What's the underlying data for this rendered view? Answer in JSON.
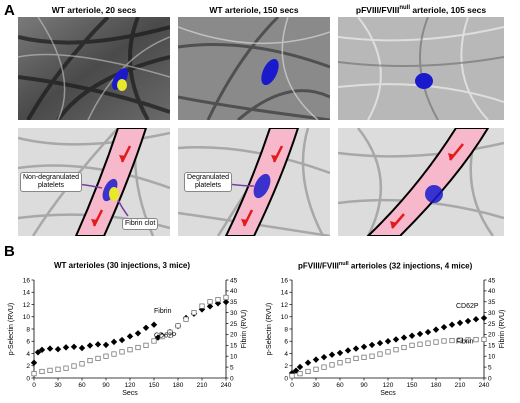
{
  "panel_a": {
    "letter": "A",
    "titles": [
      "WT arteriole, 20 secs",
      "WT arteriole, 150 secs",
      "pFVIII/FVIII",
      "null",
      " arteriole, 105 secs"
    ],
    "labels": {
      "non_degranulated": [
        "Non-degranulated",
        "platelets"
      ],
      "fibrin_clot": "Fibrin clot",
      "degranulated": [
        "Degranulated",
        "platelets"
      ]
    },
    "colors": {
      "platelet": "#1a1acc",
      "fibrin": "#e8e82a",
      "vessel": "#f7b8cc",
      "arrow": "#e41a1c",
      "callout": "#7b3fa0"
    }
  },
  "panel_b": {
    "letter": "B",
    "left_title": "WT arterioles (30 injections, 3 mice)",
    "right_title_a": "pFVIII/FVIII",
    "right_title_sup": "null",
    "right_title_b": " arterioles (32 injections, 4 mice)",
    "ylabel_left": "p-Selectin (RVU)",
    "ylabel_right": "Fibrin (RVU)",
    "xlabel": "Secs",
    "x_ticks": [
      "0",
      "30",
      "60",
      "90",
      "120",
      "150",
      "180",
      "210",
      "240"
    ],
    "yl_ticks": [
      "0",
      "2",
      "4",
      "6",
      "8",
      "10",
      "12",
      "14",
      "16"
    ],
    "yr_ticks": [
      "0",
      "5",
      "10",
      "15",
      "20",
      "25",
      "30",
      "35",
      "40",
      "45"
    ],
    "series_labels": {
      "fibrin": "Fibrin",
      "cd62p": "CD62P"
    }
  },
  "chart_data": [
    {
      "type": "scatter",
      "title": "WT arterioles (30 injections, 3 mice)",
      "xlabel": "Secs",
      "ylabel": "p-Selectin (RVU)",
      "ylabel_right": "Fibrin (RVU)",
      "xlim": [
        0,
        240
      ],
      "ylim": [
        0,
        16
      ],
      "ylim_right": [
        0,
        45
      ],
      "series": [
        {
          "name": "CD62P",
          "axis": "left",
          "marker": "filled-diamond",
          "x": [
            0,
            5,
            10,
            20,
            30,
            40,
            50,
            60,
            70,
            80,
            90,
            100,
            110,
            120,
            130,
            140,
            150,
            155,
            160,
            170,
            180,
            190,
            200,
            210,
            220,
            230,
            240
          ],
          "y": [
            2.5,
            4.2,
            4.6,
            4.8,
            4.7,
            5.0,
            5.1,
            4.9,
            5.3,
            5.5,
            5.4,
            5.9,
            6.2,
            6.8,
            7.3,
            8.2,
            8.7,
            6.6,
            6.9,
            7.5,
            8.5,
            9.8,
            10.5,
            11.2,
            11.7,
            12.2,
            12.4
          ]
        },
        {
          "name": "Fibrin",
          "axis": "right",
          "marker": "open-square",
          "x": [
            0,
            10,
            20,
            30,
            40,
            50,
            60,
            70,
            80,
            90,
            100,
            110,
            120,
            130,
            140,
            150,
            160,
            170,
            180,
            190,
            200,
            210,
            220,
            230,
            240
          ],
          "y": [
            2,
            3,
            3.5,
            4,
            4.5,
            5.5,
            6.5,
            8,
            9,
            10,
            11,
            12,
            13,
            14,
            15,
            17,
            19,
            21,
            24,
            27,
            30,
            33,
            35,
            36,
            37
          ]
        }
      ]
    },
    {
      "type": "scatter",
      "title": "pFVIII/FVIIInull arterioles (32 injections, 4 mice)",
      "xlabel": "Secs",
      "ylabel": "p-Selectin (RVU)",
      "ylabel_right": "Fibrin (RVU)",
      "xlim": [
        0,
        240
      ],
      "ylim": [
        0,
        16
      ],
      "ylim_right": [
        0,
        45
      ],
      "series": [
        {
          "name": "CD62P",
          "axis": "left",
          "marker": "filled-diamond",
          "x": [
            0,
            5,
            10,
            20,
            30,
            40,
            50,
            60,
            70,
            80,
            90,
            100,
            110,
            120,
            130,
            140,
            150,
            160,
            170,
            180,
            190,
            200,
            210,
            220,
            230,
            240
          ],
          "y": [
            0.8,
            1.2,
            1.8,
            2.5,
            3.0,
            3.4,
            3.8,
            4.1,
            4.5,
            4.8,
            5.1,
            5.4,
            5.7,
            6.0,
            6.3,
            6.6,
            6.9,
            7.2,
            7.5,
            7.9,
            8.3,
            8.7,
            9.0,
            9.3,
            9.6,
            9.8
          ]
        },
        {
          "name": "Fibrin",
          "axis": "right",
          "marker": "open-square",
          "x": [
            0,
            10,
            20,
            30,
            40,
            50,
            60,
            70,
            80,
            90,
            100,
            110,
            120,
            130,
            140,
            150,
            160,
            170,
            180,
            190,
            200,
            210,
            220,
            230,
            240
          ],
          "y": [
            1,
            2,
            3,
            4,
            5,
            6,
            7,
            8,
            9,
            9.5,
            10,
            11,
            12,
            13,
            14,
            15,
            15.5,
            16,
            16.5,
            17,
            17.2,
            17.4,
            17.5,
            17.6,
            17.7
          ]
        }
      ]
    }
  ]
}
